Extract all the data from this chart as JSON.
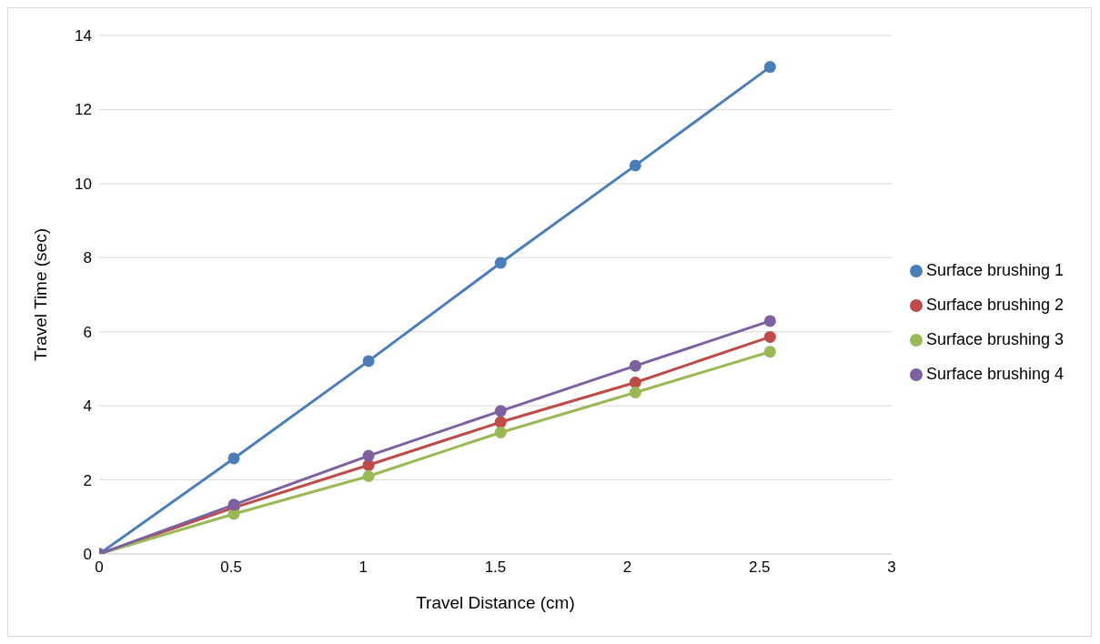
{
  "chart_data": {
    "type": "line",
    "xlabel": "Travel Distance (cm)",
    "ylabel": "Travel Time (sec)",
    "x": [
      0,
      0.51,
      1.02,
      1.52,
      2.03,
      2.54
    ],
    "series": [
      {
        "name": "Surface brushing 1",
        "color": "#4a7ebb",
        "values": [
          0,
          2.58,
          5.21,
          7.86,
          10.49,
          13.15
        ]
      },
      {
        "name": "Surface brushing 2",
        "color": "#be4b48",
        "values": [
          0,
          1.25,
          2.4,
          3.56,
          4.63,
          5.86
        ]
      },
      {
        "name": "Surface brushing 3",
        "color": "#98b954",
        "values": [
          0,
          1.08,
          2.1,
          3.28,
          4.36,
          5.46
        ]
      },
      {
        "name": "Surface brushing 4",
        "color": "#7d60a0",
        "values": [
          0,
          1.33,
          2.65,
          3.86,
          5.08,
          6.29
        ]
      }
    ],
    "xlim": [
      0,
      3
    ],
    "xticks": [
      0,
      0.5,
      1,
      1.5,
      2,
      2.5,
      3
    ],
    "ylim": [
      0,
      14
    ],
    "yticks": [
      0,
      2,
      4,
      6,
      8,
      10,
      12,
      14
    ],
    "grid": "y",
    "legend": "right",
    "marker": "circle",
    "line_style": "solid"
  }
}
